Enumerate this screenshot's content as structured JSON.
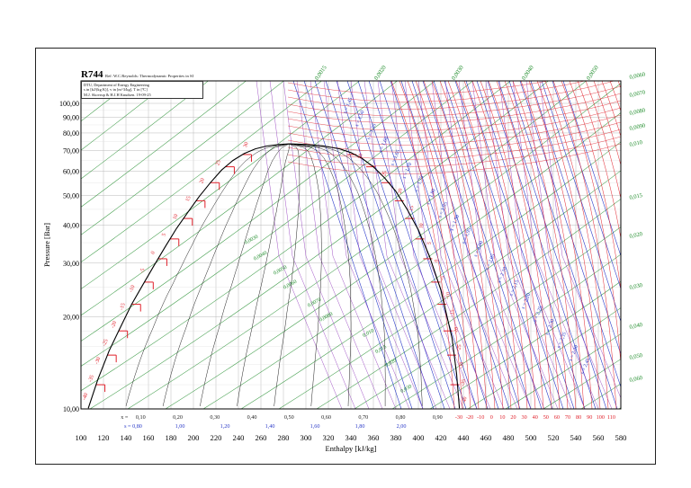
{
  "chart_data": {
    "type": "line",
    "title": "R744",
    "subtitle": "Ref: W.C.Reynolds: Thermodynamic Properties in SI",
    "info_lines": [
      "DTU, Department of Energy Engineering",
      "s in [kJ/(kg K)], v in [m^3/kg], T in [ºC]",
      "M.J. Skovrup & H.J.H Knudsen. 19-09-25"
    ],
    "xlabel": "Enthalpy [kJ/kg]",
    "ylabel": "Pressure [Bar]",
    "xlim": [
      100,
      580
    ],
    "ylim": [
      10,
      100
    ],
    "yscale": "log",
    "x_ticks": [
      "100",
      "120",
      "140",
      "160",
      "180",
      "200",
      "220",
      "240",
      "260",
      "280",
      "300",
      "320",
      "340",
      "360",
      "380",
      "400",
      "420",
      "440",
      "460",
      "480",
      "500",
      "520",
      "540",
      "560",
      "580"
    ],
    "y_ticks": [
      "10,00",
      "20,00",
      "30,00",
      "40,00",
      "50,00",
      "60,00",
      "70,00",
      "80,00",
      "90,00",
      "100,00"
    ],
    "quality_labels": [
      "0,10",
      "0,20",
      "0,30",
      "0,40",
      "0,50",
      "0,60",
      "0,70",
      "0,80",
      "0,90"
    ],
    "quality_prefix": "x = ",
    "entropy_axis_labels": [
      "s = 0,80",
      "1,00",
      "1,20",
      "1,40",
      "1,60",
      "1,80",
      "2,00"
    ],
    "liquid_temperature_labels": [
      "-40",
      "-35",
      "-30",
      "-25",
      "-20",
      "-15",
      "-10",
      "-5",
      "0",
      "5",
      "10",
      "15",
      "20",
      "25",
      "30"
    ],
    "vapor_temperature_labels": [
      "30",
      "25",
      "20",
      "15",
      "10",
      "5",
      "0",
      "-5",
      "-10",
      "-15",
      "-20",
      "-25",
      "-30",
      "-35",
      "-40"
    ],
    "bottom_temperature_labels": [
      "-30",
      "-20",
      "-10",
      "0",
      "10",
      "20",
      "30",
      "40",
      "50",
      "60",
      "70",
      "80",
      "90",
      "100",
      "110"
    ],
    "volume_labels": [
      "0,0015",
      "0,0020",
      "0,0030",
      "0,0040",
      "0,0050",
      "0,0060",
      "0,0070",
      "0,0080",
      "0,0090",
      "0,010",
      "0,015",
      "0,020",
      "0,030",
      "0,040",
      "0,050",
      "0,060"
    ],
    "interior_volume_labels": [
      "0,0030",
      "0,0040",
      "0,0050",
      "0,0060",
      "0,0070",
      "0,0080",
      "0,010",
      "0,015",
      "0,020",
      "0,030"
    ],
    "entropy_line_labels": [
      "s = 1,45",
      "s = 1,50",
      "s = 1,55",
      "s = 1,60",
      "s = 1,65",
      "s = 1,70",
      "s = 1,75",
      "s = 1,80",
      "s = 1,85",
      "s = 1,90",
      "s = 1,95",
      "s = 2,00",
      "s = 2,05",
      "s = 2,10",
      "s = 2,15",
      "s = 2,20",
      "s = 2,25",
      "s = 2,30",
      "s = 2,35",
      "s = 2,40",
      "s = 2,45"
    ],
    "saturation_curve": {
      "liquid": [
        [
          106.5,
          10.05
        ],
        [
          115,
          12.5
        ],
        [
          125,
          15.5
        ],
        [
          135,
          18.5
        ],
        [
          145,
          22
        ],
        [
          155,
          25.5
        ],
        [
          165,
          29.5
        ],
        [
          175,
          34
        ],
        [
          185,
          39
        ],
        [
          195,
          44
        ],
        [
          205,
          49.5
        ],
        [
          215,
          55
        ],
        [
          225,
          60.5
        ],
        [
          235,
          65
        ],
        [
          245,
          68.5
        ],
        [
          255,
          71
        ],
        [
          265,
          72.5
        ],
        [
          275,
          73.3
        ],
        [
          285,
          73.7
        ]
      ],
      "vapor": [
        [
          285,
          73.7
        ],
        [
          300,
          73.4
        ],
        [
          315,
          72.6
        ],
        [
          330,
          71
        ],
        [
          340,
          69
        ],
        [
          350,
          66
        ],
        [
          360,
          62
        ],
        [
          370,
          57
        ],
        [
          380,
          51.5
        ],
        [
          390,
          45
        ],
        [
          400,
          38.5
        ],
        [
          410,
          31.5
        ],
        [
          420,
          24.5
        ],
        [
          430,
          17
        ],
        [
          434,
          13
        ],
        [
          436.5,
          10.05
        ]
      ],
      "critical_point": [
        285,
        73.7
      ]
    },
    "colors": {
      "saturation": "#000000",
      "isotherm": "#e0202a",
      "isentrope": "#2a3ac8",
      "isochore": "#1e8c2a",
      "quality": "#222222",
      "grid": "#b9b9b9",
      "quality_label": "#222222",
      "entropy_label": "#2a3ac8",
      "volume_label": "#1e8c2a",
      "temperature_label": "#e0202a"
    }
  }
}
